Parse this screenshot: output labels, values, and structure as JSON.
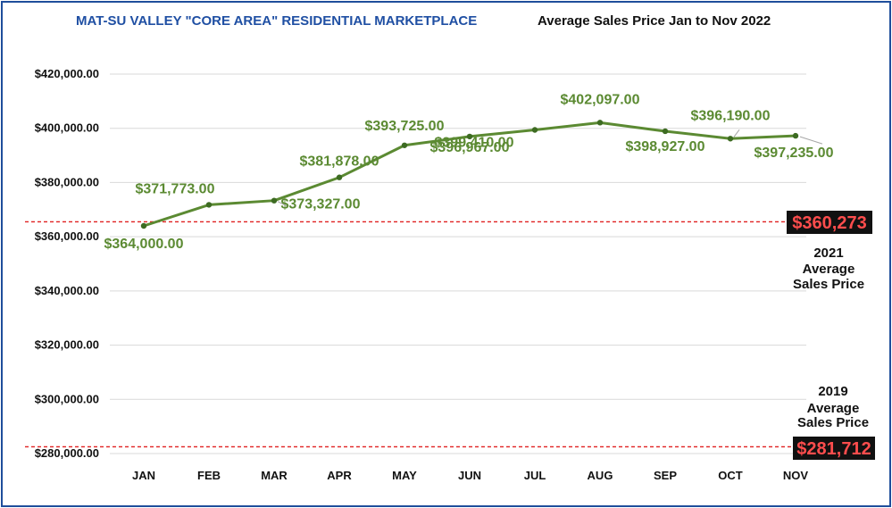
{
  "title": "MAT-SU VALLEY \"CORE AREA\" RESIDENTIAL MARKETPLACE",
  "subtitle": "Average Sales Price Jan to Nov 2022",
  "colors": {
    "title": "#1f4fa3",
    "line": "#5b8a32",
    "reference_line": "#e02020",
    "reference_label_bg": "#111111",
    "reference_label_text": "#ff4d4d",
    "frame": "#1f4e9b"
  },
  "chart_data": {
    "type": "line",
    "categories": [
      "JAN",
      "FEB",
      "MAR",
      "APR",
      "MAY",
      "JUN",
      "JUL",
      "AUG",
      "SEP",
      "OCT",
      "NOV"
    ],
    "values": [
      364000.0,
      371773.0,
      373327.0,
      381878.0,
      393725.0,
      396967.0,
      399410.0,
      402097.0,
      398927.0,
      396190.0,
      397235.0
    ],
    "data_labels": [
      "$364,000.00",
      "$371,773.00",
      "$373,327.00",
      "$381,878.00",
      "$393,725.00",
      "$396,967.00",
      "$399,410.00",
      "$402,097.00",
      "$398,927.00",
      "$396,190.00",
      "$397,235.00"
    ],
    "ylim": [
      280000,
      420000
    ],
    "yticks": [
      280000,
      300000,
      320000,
      340000,
      360000,
      380000,
      400000,
      420000
    ],
    "ytick_labels": [
      "$280,000.00",
      "$300,000.00",
      "$320,000.00",
      "$340,000.00",
      "$360,000.00",
      "$380,000.00",
      "$400,000.00",
      "$420,000.00"
    ],
    "grid": true,
    "reference_lines": [
      {
        "value": 365500,
        "label": "$360,273",
        "note": [
          "2021",
          "Average",
          "Sales Price"
        ]
      },
      {
        "value": 282500,
        "label": "$281,712",
        "note": [
          "2019",
          "Average",
          "Sales Price"
        ]
      }
    ]
  }
}
